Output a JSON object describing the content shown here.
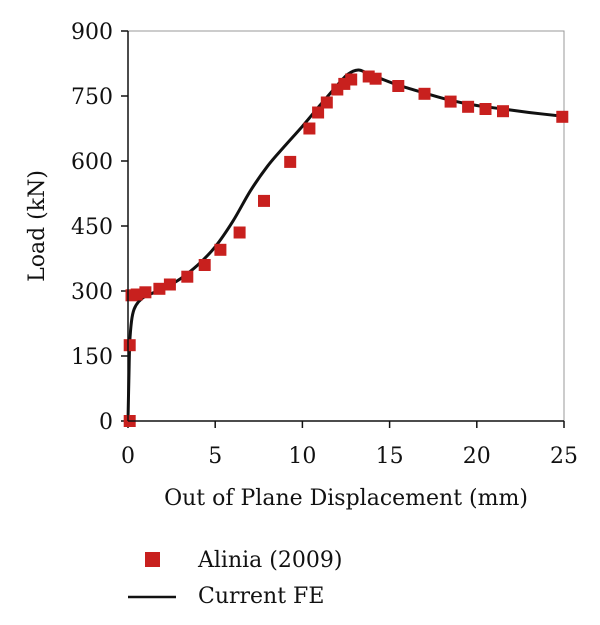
{
  "chart_data": {
    "type": "scatter",
    "title": "",
    "xlabel": "Out of Plane Displacement (mm)",
    "ylabel": "Load (kN)",
    "xlim": [
      0,
      25
    ],
    "ylim": [
      0,
      900
    ],
    "x_ticks": [
      0,
      5,
      10,
      15,
      20,
      25
    ],
    "y_ticks": [
      0,
      150,
      300,
      450,
      600,
      750,
      900
    ],
    "grid": false,
    "legend_position": "bottom-left",
    "series": [
      {
        "name": "Alinia (2009)",
        "kind": "markers",
        "marker": "square",
        "color": "#c8201e",
        "x": [
          0.1,
          0.1,
          0.2,
          0.5,
          1.0,
          1.8,
          2.4,
          3.4,
          4.4,
          5.3,
          6.4,
          7.8,
          9.3,
          10.4,
          10.9,
          11.4,
          12.0,
          12.4,
          12.8,
          13.8,
          14.2,
          15.5,
          17.0,
          18.5,
          19.5,
          20.5,
          21.5,
          24.9
        ],
        "y": [
          0,
          175,
          290,
          292,
          297,
          305,
          315,
          333,
          360,
          395,
          435,
          508,
          598,
          675,
          712,
          735,
          765,
          778,
          788,
          795,
          790,
          773,
          755,
          737,
          725,
          720,
          715,
          702
        ]
      },
      {
        "name": "Current FE",
        "kind": "line",
        "color": "#111111",
        "x": [
          0.0,
          0.05,
          0.1,
          0.2,
          0.35,
          0.6,
          1.0,
          2.0,
          3.0,
          4.0,
          5.0,
          6.0,
          7.0,
          8.0,
          9.0,
          10.0,
          11.0,
          12.0,
          12.6,
          13.2,
          13.7,
          14.5,
          15.5,
          17.0,
          18.5,
          20.0,
          21.5,
          23.0,
          25.0
        ],
        "y": [
          0,
          100,
          180,
          230,
          258,
          275,
          288,
          305,
          328,
          360,
          402,
          460,
          530,
          588,
          635,
          680,
          728,
          775,
          800,
          810,
          803,
          790,
          775,
          757,
          740,
          728,
          720,
          712,
          703
        ]
      }
    ]
  }
}
